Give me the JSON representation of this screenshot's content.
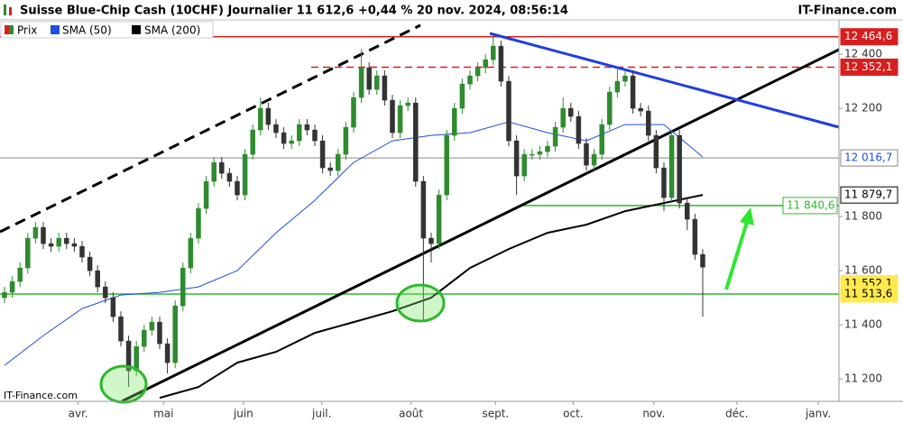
{
  "chart_data": {
    "type": "candlestick",
    "title": "Suisse Blue-Chip Cash (10CHF) Journalier 11 612,6 +0,44 % 20 nov. 2024, 08:56:14",
    "source": "IT-Finance.com",
    "watermark": "IT-Finance.com",
    "xlim": [
      -0.58,
      107.56
    ],
    "xticks": [
      {
        "value": 9.5,
        "label": "avr."
      },
      {
        "value": 20.5,
        "label": "mai"
      },
      {
        "value": 30.8,
        "label": "juin"
      },
      {
        "value": 40.9,
        "label": "juil."
      },
      {
        "value": 52.4,
        "label": "août"
      },
      {
        "value": 63.3,
        "label": "sept."
      },
      {
        "value": 73.3,
        "label": "oct."
      },
      {
        "value": 83.7,
        "label": "nov."
      },
      {
        "value": 94.4,
        "label": "déc."
      },
      {
        "value": 104.9,
        "label": "janv."
      }
    ],
    "ylim": [
      11117,
      12527
    ],
    "yticks": [
      {
        "value": 11200,
        "label": "11 200"
      },
      {
        "value": 11400,
        "label": "11 400"
      },
      {
        "value": 11600,
        "label": "11 600"
      },
      {
        "value": 11800,
        "label": "11 800"
      },
      {
        "value": 12200,
        "label": "12 200"
      },
      {
        "value": 12400,
        "label": "12 400"
      }
    ],
    "candles": {
      "name": "Prix",
      "up_color": "#2e8b2e",
      "down_color": "#333333",
      "open": [
        11500,
        11520,
        11560,
        11610,
        11720,
        11760,
        11700,
        11690,
        11720,
        11700,
        11690,
        11650,
        11600,
        11540,
        11500,
        11430,
        11340,
        11230,
        11320,
        11380,
        11410,
        11330,
        11260,
        11470,
        11610,
        11720,
        11830,
        11930,
        12000,
        11960,
        11930,
        11880,
        12030,
        12120,
        12200,
        12140,
        12110,
        12070,
        12080,
        12140,
        12120,
        12080,
        11980,
        11970,
        12030,
        12130,
        12240,
        12350,
        12270,
        12320,
        12230,
        12110,
        12210,
        12220,
        11930,
        11720,
        11700,
        11880,
        12100,
        12200,
        12290,
        12320,
        12350,
        12380,
        12430,
        12300,
        12080,
        11950,
        12030,
        12030,
        12040,
        12060,
        12130,
        12200,
        12170,
        12070,
        11990,
        12030,
        12140,
        12260,
        12300,
        12320,
        12200,
        12190,
        12100,
        11980,
        11870,
        12100,
        11850,
        11790,
        11660
      ],
      "high": [
        11540,
        11580,
        11630,
        11740,
        11780,
        11780,
        11720,
        11740,
        11740,
        11720,
        11710,
        11670,
        11620,
        11560,
        11520,
        11450,
        11360,
        11340,
        11400,
        11430,
        11430,
        11350,
        11490,
        11630,
        11740,
        11850,
        11950,
        12020,
        12020,
        11980,
        11950,
        12050,
        12140,
        12240,
        12220,
        12160,
        12130,
        12100,
        12160,
        12160,
        12140,
        12100,
        12000,
        12050,
        12150,
        12260,
        12420,
        12370,
        12340,
        12340,
        12250,
        12230,
        12240,
        12240,
        11950,
        11740,
        11900,
        12120,
        12220,
        12310,
        12340,
        12370,
        12400,
        12470,
        12450,
        12320,
        12100,
        12050,
        12050,
        12060,
        12080,
        12150,
        12240,
        12220,
        12190,
        12090,
        12050,
        12160,
        12280,
        12350,
        12340,
        12340,
        12220,
        12210,
        12120,
        12000,
        12120,
        12120,
        11870,
        11810,
        11680
      ],
      "low": [
        11480,
        11500,
        11540,
        11590,
        11700,
        11680,
        11670,
        11670,
        11680,
        11670,
        11630,
        11580,
        11520,
        11480,
        11410,
        11320,
        11170,
        11210,
        11300,
        11360,
        11310,
        11220,
        11240,
        11450,
        11590,
        11700,
        11810,
        11910,
        11940,
        11910,
        11860,
        11860,
        12010,
        12100,
        12120,
        12090,
        12050,
        12050,
        12060,
        12100,
        12060,
        11960,
        11950,
        11950,
        12010,
        12110,
        12220,
        12250,
        12250,
        12210,
        12090,
        12090,
        12190,
        11910,
        11420,
        11630,
        11680,
        11860,
        12080,
        12180,
        12270,
        12300,
        12330,
        12360,
        12280,
        12060,
        11880,
        11930,
        12010,
        12010,
        12020,
        12040,
        12110,
        12150,
        12050,
        11970,
        11970,
        12010,
        12120,
        12240,
        12280,
        12180,
        12170,
        12080,
        11960,
        11820,
        11850,
        11830,
        11750,
        11640,
        11430
      ],
      "close": [
        11520,
        11560,
        11610,
        11720,
        11760,
        11700,
        11690,
        11720,
        11700,
        11690,
        11650,
        11600,
        11540,
        11500,
        11430,
        11340,
        11230,
        11320,
        11380,
        11410,
        11330,
        11260,
        11470,
        11610,
        11720,
        11830,
        11930,
        12000,
        11960,
        11930,
        11880,
        12030,
        12120,
        12200,
        12140,
        12110,
        12070,
        12080,
        12140,
        12120,
        12080,
        11980,
        11970,
        12030,
        12130,
        12240,
        12350,
        12270,
        12320,
        12230,
        12110,
        12210,
        12220,
        11930,
        11720,
        11700,
        11880,
        12100,
        12200,
        12290,
        12320,
        12350,
        12380,
        12430,
        12300,
        12080,
        11950,
        12030,
        12030,
        12040,
        12060,
        12130,
        12200,
        12170,
        12070,
        11990,
        12030,
        12140,
        12260,
        12300,
        12320,
        12200,
        12190,
        12100,
        11980,
        11870,
        12100,
        11850,
        11790,
        11660,
        11613
      ]
    },
    "series": [
      {
        "name": "SMA (50)",
        "color": "#1f4fe0",
        "x": [
          0,
          5,
          10,
          15,
          20,
          25,
          30,
          35,
          40,
          45,
          50,
          55,
          60,
          65,
          70,
          75,
          80,
          85,
          90
        ],
        "values": [
          11250,
          11360,
          11460,
          11510,
          11520,
          11540,
          11600,
          11740,
          11860,
          12000,
          12080,
          12100,
          12110,
          12150,
          12110,
          12080,
          12140,
          12140,
          12020
        ]
      },
      {
        "name": "SMA (200)",
        "color": "#000000",
        "x": [
          0,
          5,
          10,
          15,
          20,
          25,
          30,
          35,
          40,
          45,
          50,
          55,
          60,
          65,
          70,
          75,
          80,
          85,
          90
        ],
        "values": [
          null,
          null,
          null,
          null,
          11130,
          11170,
          11260,
          11300,
          11370,
          11410,
          11450,
          11500,
          11610,
          11680,
          11740,
          11770,
          11820,
          11850,
          11880
        ]
      }
    ],
    "levels": [
      {
        "value": 12464.6,
        "label": "12 464,6",
        "color": "#d81e1e",
        "line": "solid",
        "box": "#d81e1e",
        "text_color": "#ffffff"
      },
      {
        "value": 12352.1,
        "label": "12 352,1",
        "color": "#d81e1e",
        "line": "dashed",
        "box": "#d81e1e",
        "text_color": "#ffffff"
      },
      {
        "value": 12016.7,
        "label": "12 016,7",
        "color": "#888888",
        "line": "solid",
        "box": "#ffffff",
        "text_color": "#1f4fe0"
      },
      {
        "value": 11879.7,
        "label": "11 879,7",
        "color": "#000000",
        "line": "none",
        "box": "#ffffff",
        "text_color": "#000000"
      },
      {
        "value": 11840.6,
        "label": "11 840,6",
        "color": "#2eb82e",
        "line": "solid",
        "box": "#ffffff",
        "text_color": "#2eb82e"
      },
      {
        "value": 11552.1,
        "label": "11 552,1",
        "color": "#000000",
        "line": "none",
        "box": "#ffe94d",
        "text_color": "#000000"
      },
      {
        "value": 11513.6,
        "label": "11 513,6",
        "color": "#2eb82e",
        "line": "solid",
        "box": "#ffe94d",
        "text_color": "#000000"
      }
    ]
  }
}
